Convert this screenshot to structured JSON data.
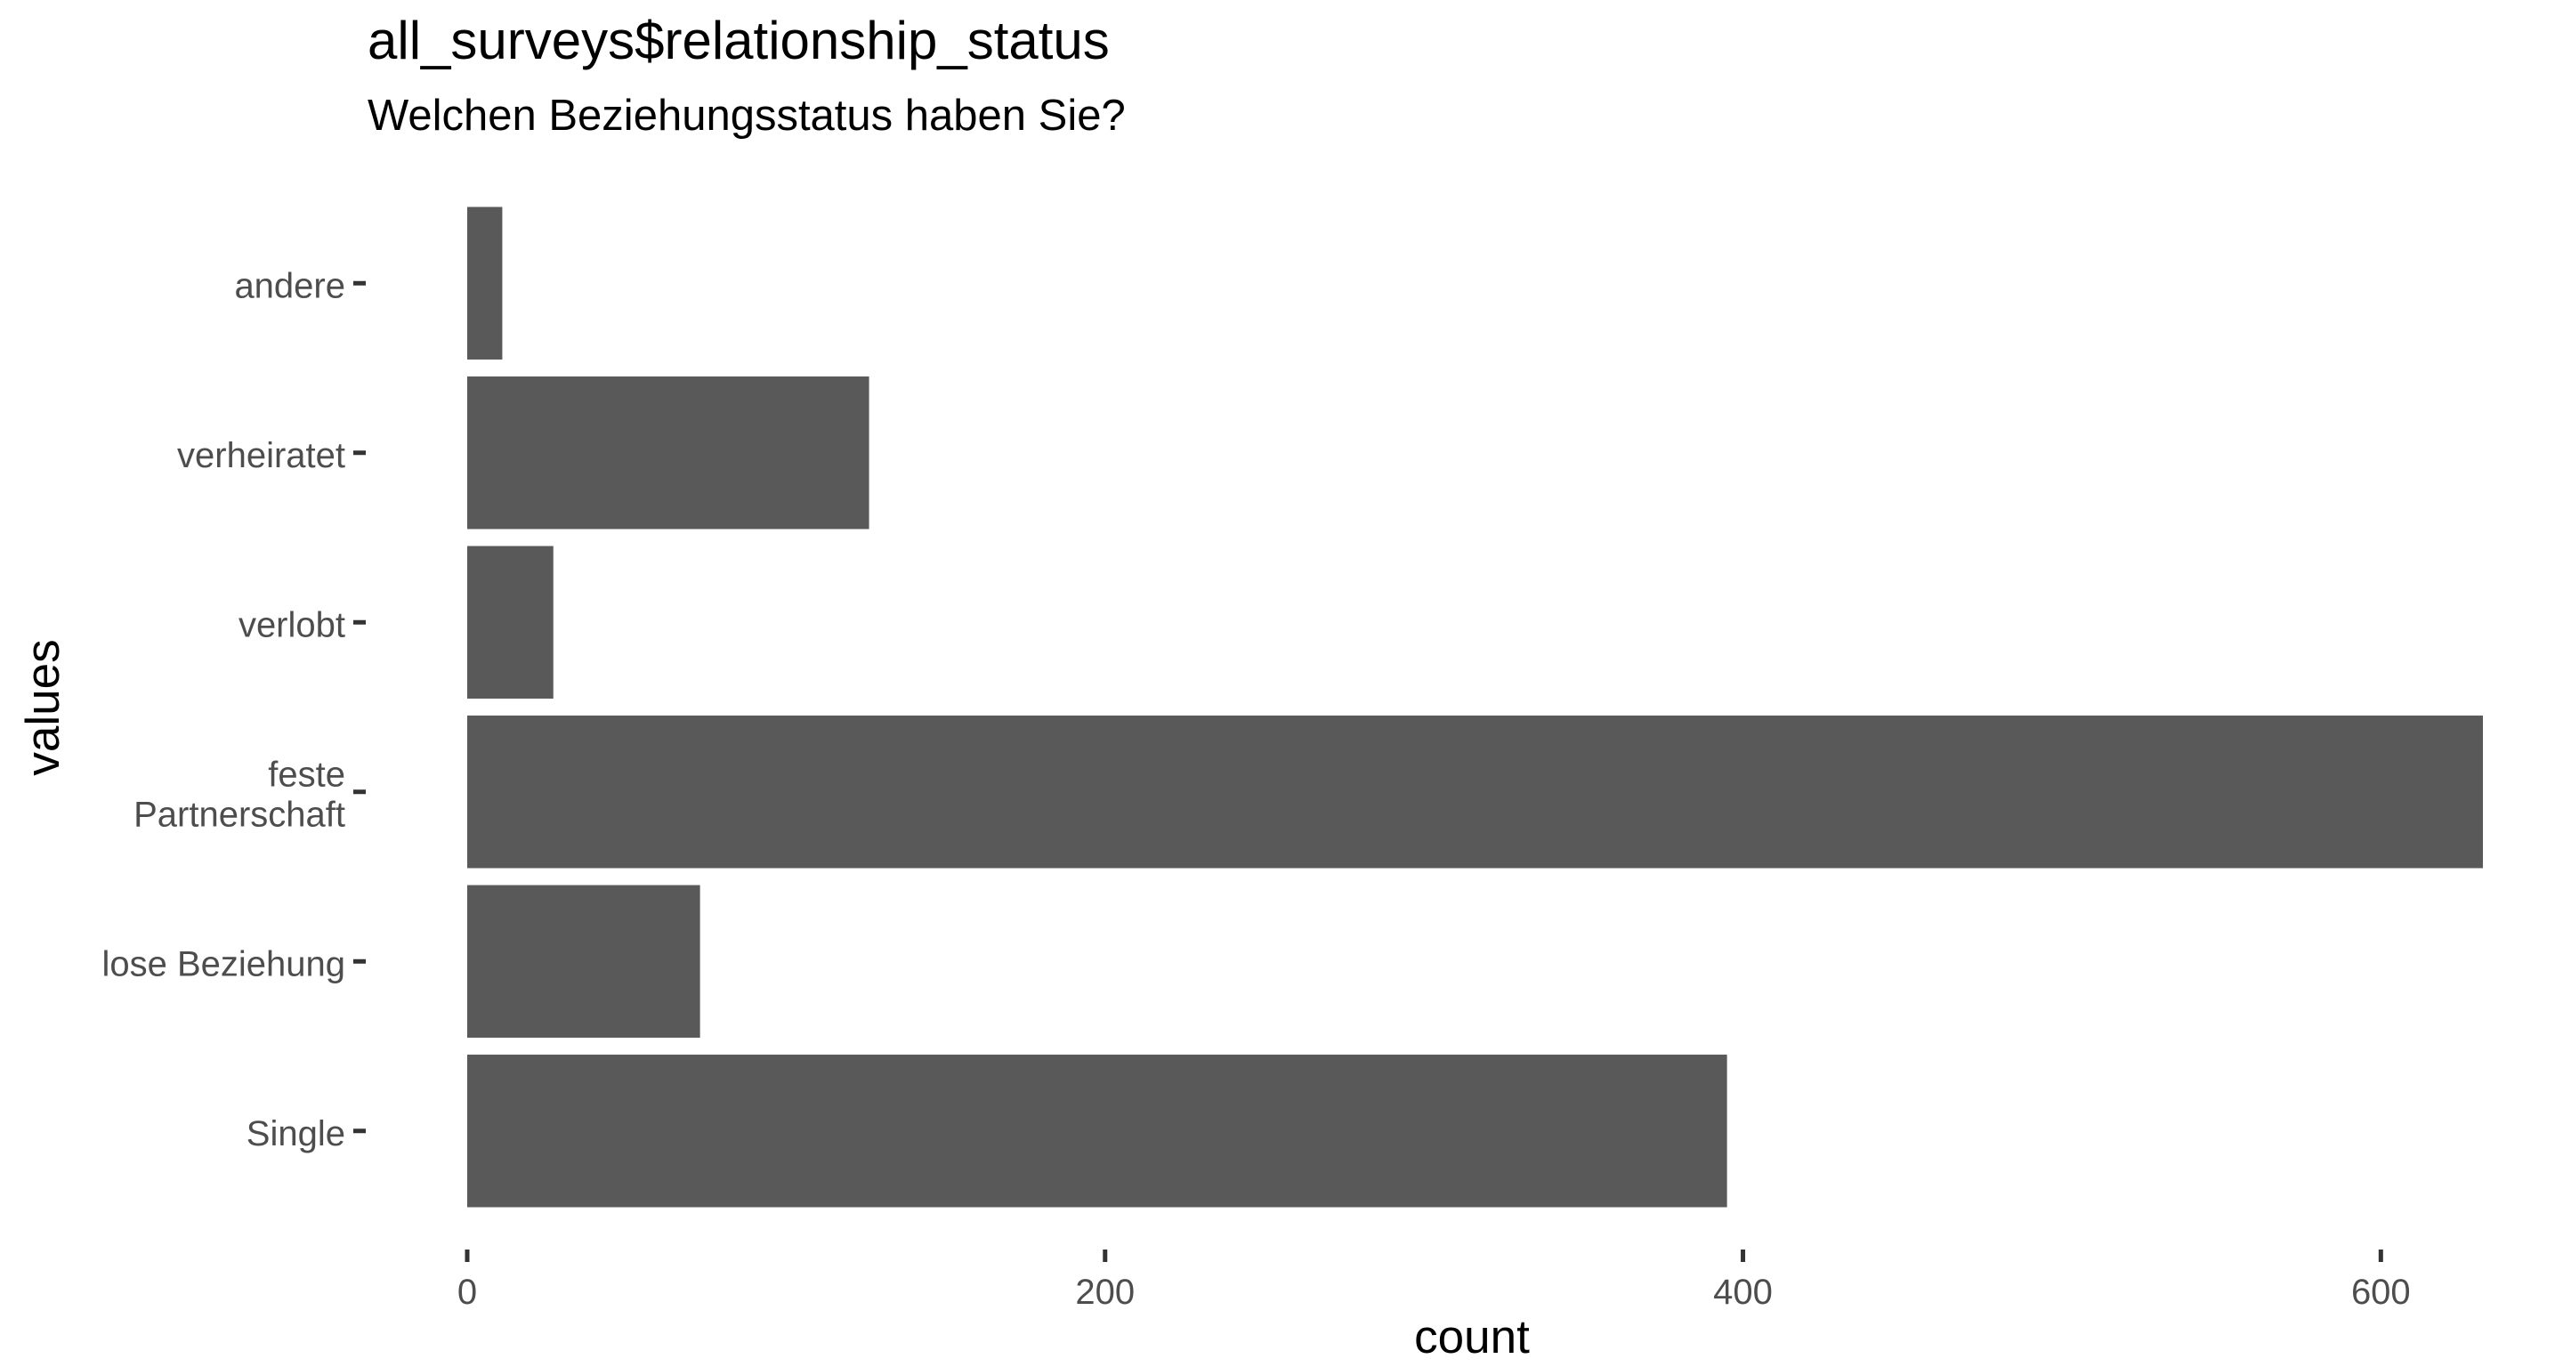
{
  "chart_data": {
    "type": "bar",
    "orientation": "horizontal",
    "title": "all_surveys$relationship_status",
    "subtitle": "Welchen Beziehungsstatus haben Sie?",
    "xlabel": "count",
    "ylabel": "values",
    "categories": [
      [
        "andere"
      ],
      [
        "verheiratet"
      ],
      [
        "verlobt"
      ],
      [
        "feste",
        "Partnerschaft"
      ],
      [
        "lose Beziehung"
      ],
      [
        "Single"
      ]
    ],
    "values": [
      11,
      126,
      27,
      632,
      73,
      395
    ],
    "xlim": [
      0,
      632
    ],
    "xticks": [
      0,
      200,
      400,
      600
    ],
    "grid": false,
    "bar_color": "#595959"
  }
}
